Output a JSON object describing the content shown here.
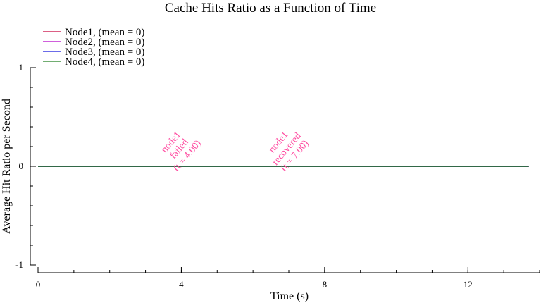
{
  "chart_data": {
    "type": "line",
    "title": "Cache Hits Ratio as a Function of Time",
    "xlabel": "Time (s)",
    "ylabel": "Average Hit Ratio per Second",
    "xlim": [
      0,
      14
    ],
    "ylim": [
      -1,
      1
    ],
    "x_ticks": [
      0,
      4,
      8,
      12
    ],
    "x_minor_step": 1,
    "y_ticks": [
      -1,
      0,
      1
    ],
    "y_minor_step": 0.2,
    "legend_position": "top-left",
    "x": [
      0,
      13.7
    ],
    "series": [
      {
        "name": "Node1, (mean = 0)",
        "color": "#c8003c",
        "values": [
          0,
          0
        ]
      },
      {
        "name": "Node2, (mean = 0)",
        "color": "#b400c8",
        "values": [
          0,
          0
        ]
      },
      {
        "name": "Node3, (mean = 0)",
        "color": "#1414dc",
        "values": [
          0,
          0
        ]
      },
      {
        "name": "Node4, (mean = 0)",
        "color": "#1e7d1e",
        "values": [
          0,
          0
        ]
      }
    ],
    "annotations": [
      {
        "x": 4.0,
        "lines": [
          "node1",
          "failed",
          "(t = 4.00)"
        ],
        "color": "#ff4ba0"
      },
      {
        "x": 7.0,
        "lines": [
          "node1",
          "recovered",
          "(t = 7.00)"
        ],
        "color": "#ff4ba0"
      }
    ]
  }
}
